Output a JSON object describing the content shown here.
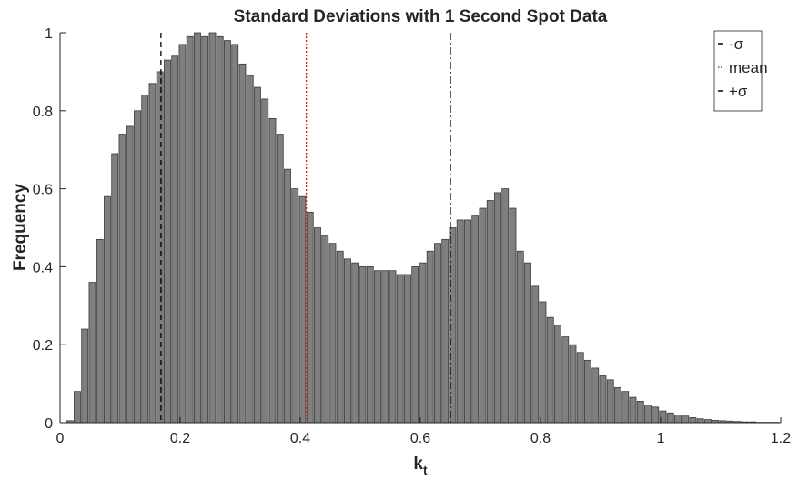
{
  "chart_data": {
    "type": "histogram",
    "title": "Standard Deviations with 1 Second Spot Data",
    "xlabel": "k",
    "xlabel_subscript": "t",
    "ylabel": "Frequency",
    "bins": [
      0.01,
      0.0225,
      0.035,
      0.0475,
      0.06,
      0.0725,
      0.085,
      0.0975,
      0.11,
      0.1225,
      0.135,
      0.1475,
      0.16,
      0.1725,
      0.185,
      0.1975,
      0.21,
      0.2225,
      0.235,
      0.2475,
      0.26,
      0.2725,
      0.285,
      0.2975,
      0.31,
      0.3225,
      0.335,
      0.3475,
      0.36,
      0.3725,
      0.385,
      0.3975,
      0.41,
      0.4225,
      0.435,
      0.4475,
      0.46,
      0.4725,
      0.485,
      0.4975,
      0.51,
      0.5225,
      0.535,
      0.5475,
      0.56,
      0.5725,
      0.585,
      0.5975,
      0.61,
      0.6225,
      0.635,
      0.6475,
      0.66,
      0.6725,
      0.685,
      0.6975,
      0.71,
      0.7225,
      0.735,
      0.7475,
      0.76,
      0.7725,
      0.785,
      0.7975,
      0.81,
      0.8225,
      0.835,
      0.8475,
      0.86,
      0.8725,
      0.885,
      0.8975,
      0.91,
      0.9225,
      0.935,
      0.9475,
      0.96,
      0.9725,
      0.985,
      0.9975,
      1.01,
      1.0225,
      1.035,
      1.0475,
      1.06,
      1.0725,
      1.085,
      1.0975,
      1.11,
      1.1225,
      1.135,
      1.1475,
      1.16,
      1.1725,
      1.185,
      1.1975
    ],
    "values": [
      0.005,
      0.08,
      0.24,
      0.36,
      0.47,
      0.58,
      0.69,
      0.74,
      0.76,
      0.8,
      0.84,
      0.87,
      0.9,
      0.93,
      0.94,
      0.97,
      0.99,
      1.0,
      0.99,
      1.0,
      0.99,
      0.98,
      0.97,
      0.92,
      0.89,
      0.86,
      0.83,
      0.78,
      0.74,
      0.65,
      0.6,
      0.58,
      0.54,
      0.5,
      0.48,
      0.46,
      0.44,
      0.42,
      0.41,
      0.4,
      0.4,
      0.39,
      0.39,
      0.39,
      0.38,
      0.38,
      0.4,
      0.41,
      0.44,
      0.46,
      0.47,
      0.5,
      0.52,
      0.52,
      0.53,
      0.55,
      0.57,
      0.59,
      0.6,
      0.55,
      0.44,
      0.41,
      0.35,
      0.31,
      0.27,
      0.25,
      0.22,
      0.2,
      0.18,
      0.16,
      0.14,
      0.12,
      0.11,
      0.09,
      0.08,
      0.065,
      0.055,
      0.045,
      0.04,
      0.03,
      0.025,
      0.02,
      0.017,
      0.013,
      0.01,
      0.008,
      0.006,
      0.005,
      0.004,
      0.003,
      0.002,
      0.002,
      0.001,
      0.001,
      0.001
    ],
    "color": "#7f7f7f",
    "reference_lines": [
      {
        "name": "-σ",
        "x": 0.168,
        "color": "#000000",
        "style": "dashed"
      },
      {
        "name": "mean",
        "x": 0.41,
        "color": "#d62020",
        "style": "dotted"
      },
      {
        "name": "+σ",
        "x": 0.65,
        "color": "#000000",
        "style": "dashdot"
      }
    ],
    "xlim": [
      0,
      1.2
    ],
    "xticks": [
      0,
      0.2,
      0.4,
      0.6,
      0.8,
      1,
      1.2
    ],
    "ylim": [
      0,
      1
    ],
    "yticks": [
      0,
      0.2,
      0.4,
      0.6,
      0.8,
      1
    ],
    "legend": "top-right"
  }
}
